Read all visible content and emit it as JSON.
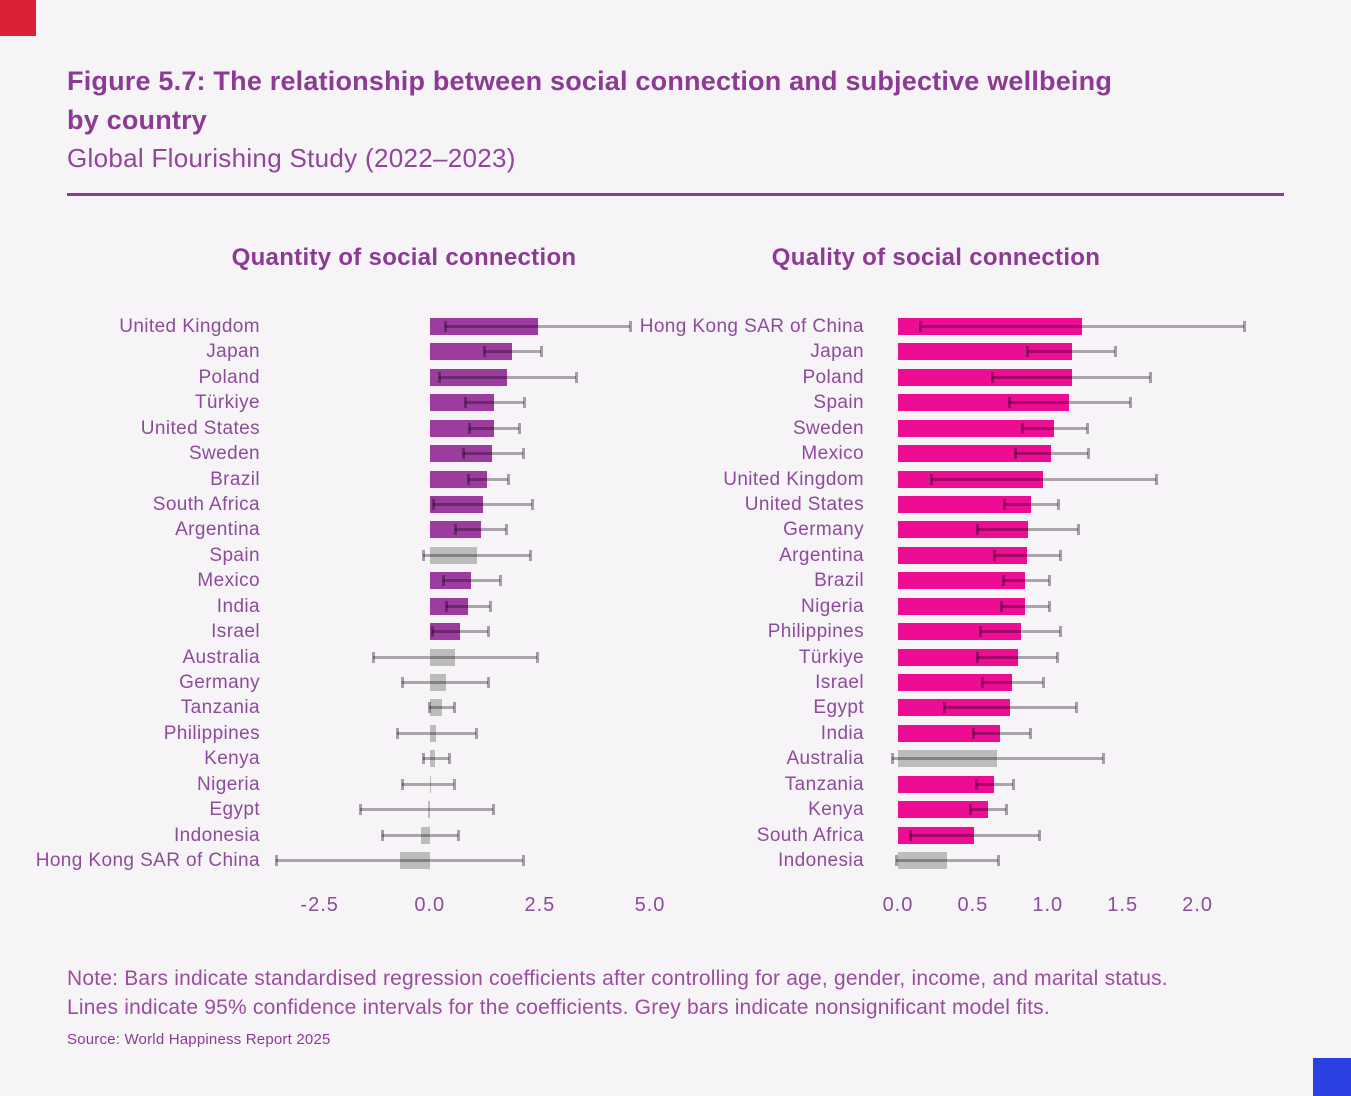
{
  "corner_marks": {
    "top_left_color": "#da2136",
    "bottom_right_color": "#2b40e0"
  },
  "header": {
    "figure_title_line1": "Figure 5.7: The relationship between social connection and subjective wellbeing",
    "figure_title_line2": "by country",
    "subtitle": "Global Flourishing Study (2022–2023)"
  },
  "chart_data": [
    {
      "type": "bar",
      "orientation": "horizontal",
      "title": "Quantity of social connection",
      "bar_color": "#9d3c9f",
      "nonsignificant_color": "#bcbcbc",
      "ci_color": "#b1adb1",
      "xlim": [
        -3.65,
        5.0
      ],
      "x_ticks": [
        "-2.5",
        "0.0",
        "2.5",
        "5.0"
      ],
      "x_tick_values": [
        -2.5,
        0.0,
        2.5,
        5.0
      ],
      "legend": "Lines = 95% confidence intervals; grey = nonsignificant",
      "rows": [
        {
          "country": "United Kingdom",
          "value": 2.45,
          "ci": [
            0.35,
            4.55
          ],
          "significant": true
        },
        {
          "country": "Japan",
          "value": 1.87,
          "ci": [
            1.23,
            2.52
          ],
          "significant": true
        },
        {
          "country": "Poland",
          "value": 1.75,
          "ci": [
            0.21,
            3.31
          ],
          "significant": true
        },
        {
          "country": "Türkiye",
          "value": 1.46,
          "ci": [
            0.8,
            2.14
          ],
          "significant": true
        },
        {
          "country": "United States",
          "value": 1.45,
          "ci": [
            0.89,
            2.03
          ],
          "significant": true
        },
        {
          "country": "Sweden",
          "value": 1.42,
          "ci": [
            0.75,
            2.11
          ],
          "significant": true
        },
        {
          "country": "Brazil",
          "value": 1.3,
          "ci": [
            0.86,
            1.77
          ],
          "significant": true
        },
        {
          "country": "South Africa",
          "value": 1.21,
          "ci": [
            0.08,
            2.33
          ],
          "significant": true
        },
        {
          "country": "Argentina",
          "value": 1.17,
          "ci": [
            0.57,
            1.74
          ],
          "significant": true
        },
        {
          "country": "Spain",
          "value": 1.07,
          "ci": [
            -0.15,
            2.27
          ],
          "significant": false
        },
        {
          "country": "Mexico",
          "value": 0.93,
          "ci": [
            0.29,
            1.59
          ],
          "significant": true
        },
        {
          "country": "India",
          "value": 0.86,
          "ci": [
            0.36,
            1.36
          ],
          "significant": true
        },
        {
          "country": "Israel",
          "value": 0.68,
          "ci": [
            0.06,
            1.33
          ],
          "significant": true
        },
        {
          "country": "Australia",
          "value": 0.58,
          "ci": [
            -1.3,
            2.44
          ],
          "significant": false
        },
        {
          "country": "Germany",
          "value": 0.36,
          "ci": [
            -0.63,
            1.33
          ],
          "significant": false
        },
        {
          "country": "Tanzania",
          "value": 0.28,
          "ci": [
            -0.02,
            0.55
          ],
          "significant": false
        },
        {
          "country": "Philippines",
          "value": 0.15,
          "ci": [
            -0.74,
            1.04
          ],
          "significant": false
        },
        {
          "country": "Kenya",
          "value": 0.12,
          "ci": [
            -0.15,
            0.44
          ],
          "significant": false
        },
        {
          "country": "Nigeria",
          "value": 0.02,
          "ci": [
            -0.63,
            0.55
          ],
          "significant": false
        },
        {
          "country": "Egypt",
          "value": -0.05,
          "ci": [
            -1.59,
            1.43
          ],
          "significant": false
        },
        {
          "country": "Indonesia",
          "value": -0.21,
          "ci": [
            -1.08,
            0.64
          ],
          "significant": false
        },
        {
          "country": "Hong Kong SAR of China",
          "value": -0.68,
          "ci": [
            -3.48,
            2.11
          ],
          "significant": false
        }
      ]
    },
    {
      "type": "bar",
      "orientation": "horizontal",
      "title": "Quality of social connection",
      "bar_color": "#ec0d94",
      "nonsignificant_color": "#bcbcbc",
      "ci_color": "#b1adb1",
      "xlim": [
        -0.12,
        2.35
      ],
      "x_ticks": [
        "0.0",
        "0.5",
        "1.0",
        "1.5",
        "2.0"
      ],
      "x_tick_values": [
        0.0,
        0.5,
        1.0,
        1.5,
        2.0
      ],
      "legend": "Lines = 95% confidence intervals; grey = nonsignificant",
      "rows": [
        {
          "country": "Hong Kong SAR of China",
          "value": 1.23,
          "ci": [
            0.15,
            2.31
          ],
          "significant": true
        },
        {
          "country": "Japan",
          "value": 1.16,
          "ci": [
            0.86,
            1.45
          ],
          "significant": true
        },
        {
          "country": "Poland",
          "value": 1.16,
          "ci": [
            0.63,
            1.68
          ],
          "significant": true
        },
        {
          "country": "Spain",
          "value": 1.14,
          "ci": [
            0.74,
            1.55
          ],
          "significant": true
        },
        {
          "country": "Sweden",
          "value": 1.04,
          "ci": [
            0.83,
            1.26
          ],
          "significant": true
        },
        {
          "country": "Mexico",
          "value": 1.02,
          "ci": [
            0.78,
            1.27
          ],
          "significant": true
        },
        {
          "country": "United Kingdom",
          "value": 0.97,
          "ci": [
            0.22,
            1.72
          ],
          "significant": true
        },
        {
          "country": "United States",
          "value": 0.89,
          "ci": [
            0.71,
            1.07
          ],
          "significant": true
        },
        {
          "country": "Germany",
          "value": 0.87,
          "ci": [
            0.53,
            1.2
          ],
          "significant": true
        },
        {
          "country": "Argentina",
          "value": 0.86,
          "ci": [
            0.64,
            1.08
          ],
          "significant": true
        },
        {
          "country": "Brazil",
          "value": 0.85,
          "ci": [
            0.7,
            1.01
          ],
          "significant": true
        },
        {
          "country": "Nigeria",
          "value": 0.85,
          "ci": [
            0.69,
            1.01
          ],
          "significant": true
        },
        {
          "country": "Philippines",
          "value": 0.82,
          "ci": [
            0.55,
            1.08
          ],
          "significant": true
        },
        {
          "country": "Türkiye",
          "value": 0.8,
          "ci": [
            0.53,
            1.06
          ],
          "significant": true
        },
        {
          "country": "Israel",
          "value": 0.76,
          "ci": [
            0.56,
            0.97
          ],
          "significant": true
        },
        {
          "country": "Egypt",
          "value": 0.75,
          "ci": [
            0.31,
            1.19
          ],
          "significant": true
        },
        {
          "country": "India",
          "value": 0.68,
          "ci": [
            0.5,
            0.88
          ],
          "significant": true
        },
        {
          "country": "Australia",
          "value": 0.66,
          "ci": [
            -0.04,
            1.37
          ],
          "significant": false
        },
        {
          "country": "Tanzania",
          "value": 0.64,
          "ci": [
            0.52,
            0.77
          ],
          "significant": true
        },
        {
          "country": "Kenya",
          "value": 0.6,
          "ci": [
            0.48,
            0.72
          ],
          "significant": true
        },
        {
          "country": "South Africa",
          "value": 0.51,
          "ci": [
            0.08,
            0.94
          ],
          "significant": true
        },
        {
          "country": "Indonesia",
          "value": 0.33,
          "ci": [
            -0.01,
            0.67
          ],
          "significant": false
        }
      ]
    }
  ],
  "note": {
    "lines": [
      "Note: Bars indicate standardised regression coefficients after controlling for age, gender, income, and marital status.",
      "Lines indicate 95% confidence intervals for the coefficients. Grey bars indicate nonsignificant model fits."
    ]
  },
  "source": "Source: World Happiness Report 2025"
}
